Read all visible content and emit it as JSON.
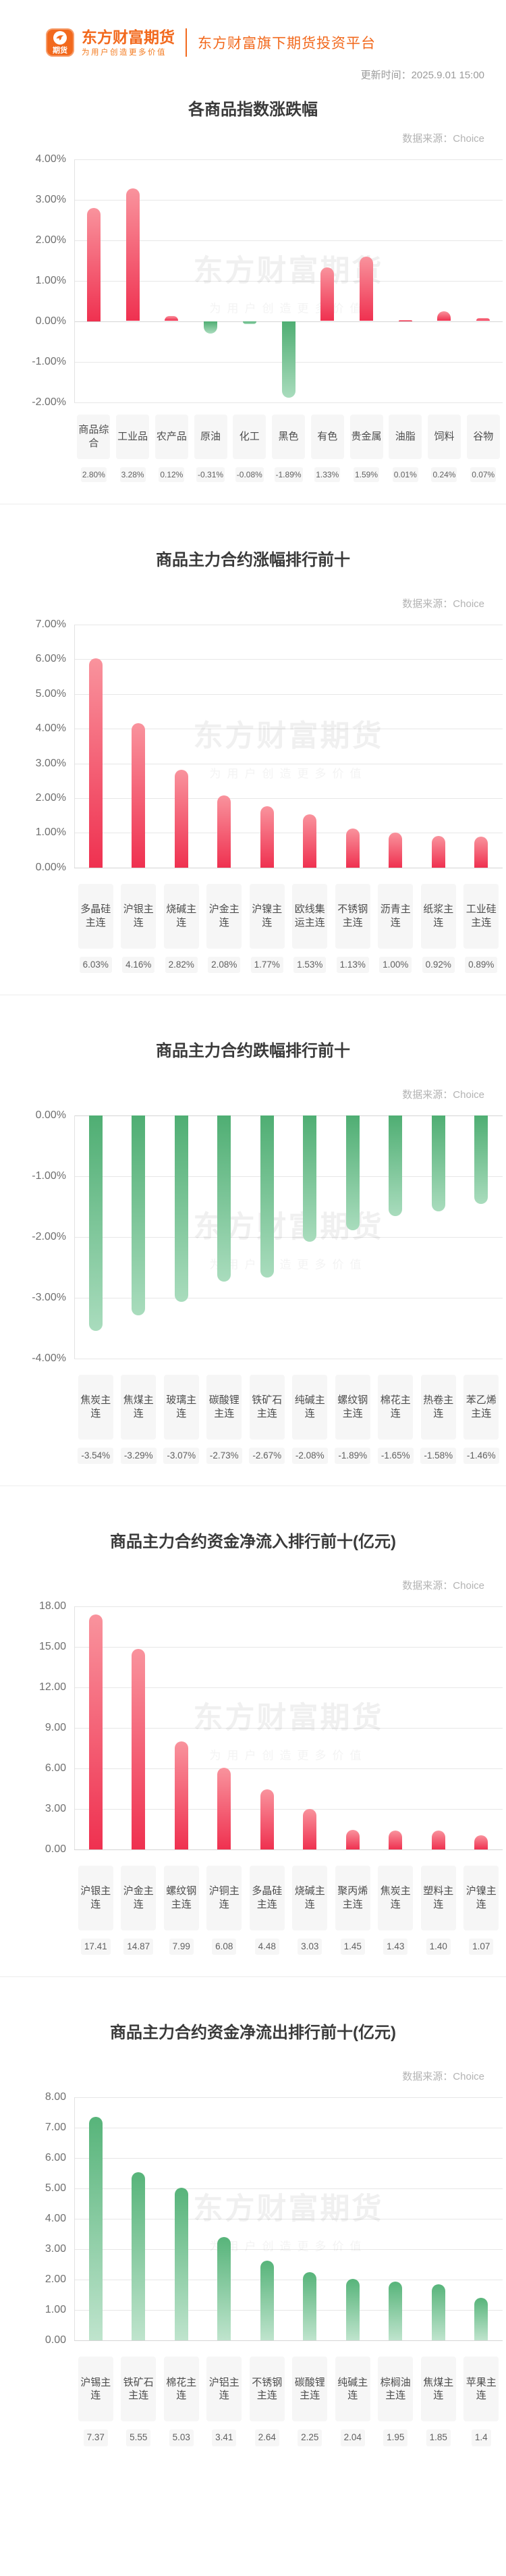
{
  "header": {
    "logo_icon_text": "期货",
    "brand_name": "东方财富期货",
    "brand_tagline": "为用户创造更多价值",
    "platform_text": "东方财富旗下期货投资平台",
    "update_time": "更新时间：2025.9.01 15:00"
  },
  "watermark": {
    "line1": "东方财富期货",
    "line2": "为用户创造更多价值"
  },
  "colors": {
    "brand_orange": "#f2691d",
    "up_red_top": "#f9939d",
    "up_red_bottom": "#ef3150",
    "down_green_top": "#4fae73",
    "down_green_bottom": "#a9dcbd",
    "title_text": "#3a3a3a",
    "axis_text": "#6f6f6f",
    "source_text": "#b3b3b3"
  },
  "chart_data": [
    {
      "type": "bar",
      "title": "各商品指数涨跌幅",
      "source": "数据来源：Choice",
      "palette": "updown",
      "y_max": 4,
      "y_min": -2,
      "tick_labels": [
        "4.00%",
        "3.00%",
        "2.00%",
        "1.00%",
        "0.00%",
        "-1.00%",
        "-2.00%"
      ],
      "categories": [
        "商品综合",
        "工业品",
        "农产品",
        "原油",
        "化工",
        "黑色",
        "有色",
        "贵金属",
        "油脂",
        "饲料",
        "谷物"
      ],
      "values": [
        2.8,
        3.28,
        0.12,
        -0.31,
        -0.08,
        -1.89,
        1.33,
        1.59,
        0.01,
        0.24,
        0.07
      ],
      "value_labels": [
        "2.80%",
        "3.28%",
        "0.12%",
        "-0.31%",
        "-0.08%",
        "-1.89%",
        "1.33%",
        "1.59%",
        "0.01%",
        "0.24%",
        "0.07%"
      ],
      "xlabel": "",
      "ylabel": "",
      "grid": true,
      "legend": "none"
    },
    {
      "type": "bar",
      "title": "商品主力合约涨幅排行前十",
      "source": "数据来源：Choice",
      "palette": "red",
      "y_max": 7,
      "y_min": 0,
      "tick_labels": [
        "7.00%",
        "6.00%",
        "5.00%",
        "4.00%",
        "3.00%",
        "2.00%",
        "1.00%",
        "0.00%"
      ],
      "categories": [
        "多晶硅主连",
        "沪银主连",
        "烧碱主连",
        "沪金主连",
        "沪镍主连",
        "欧线集运主连",
        "不锈钢主连",
        "沥青主连",
        "纸浆主连",
        "工业硅主连"
      ],
      "values": [
        6.03,
        4.16,
        2.82,
        2.08,
        1.77,
        1.53,
        1.13,
        1.0,
        0.92,
        0.89
      ],
      "value_labels": [
        "6.03%",
        "4.16%",
        "2.82%",
        "2.08%",
        "1.77%",
        "1.53%",
        "1.13%",
        "1.00%",
        "0.92%",
        "0.89%"
      ],
      "xlabel": "",
      "ylabel": "",
      "grid": true,
      "legend": "none"
    },
    {
      "type": "bar",
      "title": "商品主力合约跌幅排行前十",
      "source": "数据来源：Choice",
      "palette": "green",
      "y_max": 0,
      "y_min": -4,
      "tick_labels": [
        "0.00%",
        "-1.00%",
        "-2.00%",
        "-3.00%",
        "-4.00%"
      ],
      "categories": [
        "焦炭主连",
        "焦煤主连",
        "玻璃主连",
        "碳酸锂主连",
        "铁矿石主连",
        "纯碱主连",
        "螺纹钢主连",
        "棉花主连",
        "热卷主连",
        "苯乙烯主连"
      ],
      "values": [
        -3.54,
        -3.29,
        -3.07,
        -2.73,
        -2.67,
        -2.08,
        -1.89,
        -1.65,
        -1.58,
        -1.46
      ],
      "value_labels": [
        "-3.54%",
        "-3.29%",
        "-3.07%",
        "-2.73%",
        "-2.67%",
        "-2.08%",
        "-1.89%",
        "-1.65%",
        "-1.58%",
        "-1.46%"
      ],
      "xlabel": "",
      "ylabel": "",
      "grid": true,
      "legend": "none"
    },
    {
      "type": "bar",
      "title": "商品主力合约资金净流入排行前十(亿元)",
      "source": "数据来源：Choice",
      "palette": "red",
      "y_max": 18,
      "y_min": 0,
      "tick_labels": [
        "18.00",
        "15.00",
        "12.00",
        "9.00",
        "6.00",
        "3.00",
        "0.00"
      ],
      "categories": [
        "沪银主连",
        "沪金主连",
        "螺纹钢主连",
        "沪铜主连",
        "多晶硅主连",
        "烧碱主连",
        "聚丙烯主连",
        "焦炭主连",
        "塑料主连",
        "沪镍主连"
      ],
      "values": [
        17.41,
        14.87,
        7.99,
        6.08,
        4.48,
        3.03,
        1.45,
        1.43,
        1.4,
        1.07
      ],
      "value_labels": [
        "17.41",
        "14.87",
        "7.99",
        "6.08",
        "4.48",
        "3.03",
        "1.45",
        "1.43",
        "1.40",
        "1.07"
      ],
      "xlabel": "",
      "ylabel": "",
      "grid": true,
      "legend": "none"
    },
    {
      "type": "bar",
      "title": "商品主力合约资金净流出排行前十(亿元)",
      "source": "数据来源：Choice",
      "palette": "green",
      "y_max": 8,
      "y_min": 0,
      "tick_labels": [
        "8.00",
        "7.00",
        "6.00",
        "5.00",
        "4.00",
        "3.00",
        "2.00",
        "1.00",
        "0.00"
      ],
      "categories": [
        "沪锡主连",
        "铁矿石主连",
        "棉花主连",
        "沪铝主连",
        "不锈钢主连",
        "碳酸锂主连",
        "纯碱主连",
        "棕榈油主连",
        "焦煤主连",
        "苹果主连"
      ],
      "values": [
        7.37,
        5.55,
        5.03,
        3.41,
        2.64,
        2.25,
        2.04,
        1.95,
        1.85,
        1.4
      ],
      "value_labels": [
        "7.37",
        "5.55",
        "5.03",
        "3.41",
        "2.64",
        "2.25",
        "2.04",
        "1.95",
        "1.85",
        "1.4"
      ],
      "xlabel": "",
      "ylabel": "",
      "grid": true,
      "legend": "none"
    }
  ]
}
